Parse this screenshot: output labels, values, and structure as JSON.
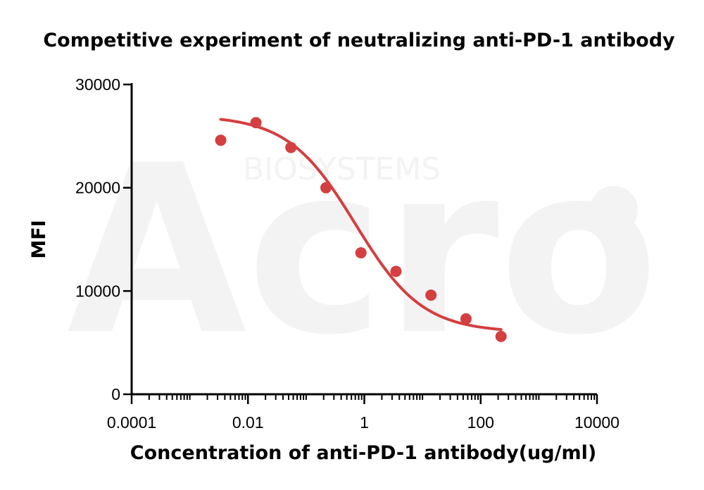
{
  "watermark": {
    "brand": "Acro",
    "sub": "BIOSYSTEMS"
  },
  "chart_data": {
    "type": "scatter",
    "title": "Competitive experiment of neutralizing anti-PD-1 antibody",
    "xlabel": "Concentration of anti-PD-1 antibody(ug/ml)",
    "ylabel": "MFI",
    "x_scale": "log",
    "xlim": [
      0.0001,
      10000
    ],
    "ylim": [
      0,
      30000
    ],
    "x_ticks": [
      "0.0001",
      "0.01",
      "1",
      "100",
      "10000"
    ],
    "y_ticks": [
      "0",
      "10000",
      "20000",
      "30000"
    ],
    "grid": false,
    "legend": "none",
    "color": "#d43f3f",
    "series": [
      {
        "points": [
          {
            "x": 0.0034,
            "y": 24600
          },
          {
            "x": 0.0137,
            "y": 26300
          },
          {
            "x": 0.0547,
            "y": 23900
          },
          {
            "x": 0.219,
            "y": 20000
          },
          {
            "x": 0.875,
            "y": 13700
          },
          {
            "x": 3.5,
            "y": 11900
          },
          {
            "x": 14.0,
            "y": 9600
          },
          {
            "x": 56.0,
            "y": 7300
          },
          {
            "x": 224.0,
            "y": 5600
          }
        ],
        "fit": {
          "model": "four-parameter logistic",
          "top": 27000,
          "bottom": 6000,
          "ec50": 0.7,
          "hill": 0.75,
          "x_range": [
            0.0034,
            224.0
          ]
        }
      }
    ]
  }
}
